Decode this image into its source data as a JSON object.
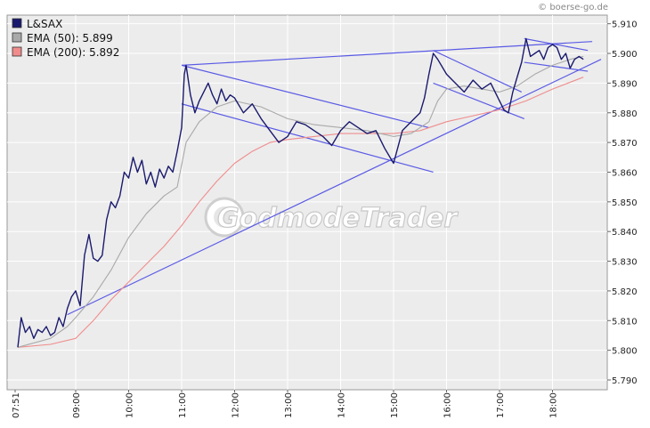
{
  "credit": "© boerse-go.de",
  "watermark": "GodmodeTrader",
  "colors": {
    "price": "#1a1a6e",
    "ema50": "#a9a9a9",
    "ema200": "#f08c8c",
    "trendlines": "#5a5ae6",
    "plot_bg": "#ececec",
    "grid": "#ffffff"
  },
  "chart_data": {
    "type": "line",
    "grid": true,
    "legend_position": "top-left",
    "ylim": [
      5.79,
      5.912
    ],
    "x_tick_labels": [
      "07:51",
      "09:00",
      "10:00",
      "11:00",
      "12:00",
      "13:00",
      "14:00",
      "15:00",
      "16:00",
      "17:00",
      "18:00"
    ],
    "y_tick_labels": [
      "5.790",
      "5.800",
      "5.810",
      "5.820",
      "5.830",
      "5.840",
      "5.850",
      "5.860",
      "5.870",
      "5.880",
      "5.890",
      "5.900",
      "5.910"
    ],
    "y_ticks": [
      5.79,
      5.8,
      5.81,
      5.82,
      5.83,
      5.84,
      5.85,
      5.86,
      5.87,
      5.88,
      5.89,
      5.9,
      5.91
    ],
    "x_ticks": [
      "07:51",
      "09:00",
      "10:00",
      "11:00",
      "12:00",
      "13:00",
      "14:00",
      "15:00",
      "16:00",
      "17:00",
      "18:00"
    ],
    "xlim": [
      "07:51",
      "18:40"
    ],
    "series": [
      {
        "name": "L&SAX",
        "legend_label": "L&SAX",
        "color": "#1a1a6e",
        "x": [
          "07:51",
          "07:55",
          "08:00",
          "08:05",
          "08:10",
          "08:15",
          "08:20",
          "08:25",
          "08:30",
          "08:35",
          "08:40",
          "08:45",
          "08:50",
          "08:55",
          "09:00",
          "09:05",
          "09:10",
          "09:15",
          "09:20",
          "09:25",
          "09:30",
          "09:35",
          "09:40",
          "09:45",
          "09:50",
          "09:55",
          "10:00",
          "10:05",
          "10:10",
          "10:15",
          "10:20",
          "10:25",
          "10:30",
          "10:35",
          "10:40",
          "10:45",
          "10:50",
          "10:55",
          "11:00",
          "11:03",
          "11:05",
          "11:10",
          "11:15",
          "11:20",
          "11:25",
          "11:30",
          "11:35",
          "11:40",
          "11:45",
          "11:50",
          "11:55",
          "12:00",
          "12:10",
          "12:20",
          "12:30",
          "12:40",
          "12:50",
          "13:00",
          "13:10",
          "13:20",
          "13:30",
          "13:40",
          "13:50",
          "14:00",
          "14:10",
          "14:20",
          "14:30",
          "14:40",
          "14:50",
          "15:00",
          "15:10",
          "15:20",
          "15:30",
          "15:35",
          "15:40",
          "15:45",
          "15:50",
          "16:00",
          "16:10",
          "16:20",
          "16:30",
          "16:40",
          "16:50",
          "17:00",
          "17:05",
          "17:10",
          "17:15",
          "17:20",
          "17:25",
          "17:30",
          "17:35",
          "17:40",
          "17:45",
          "17:50",
          "17:55",
          "18:00",
          "18:05",
          "18:10",
          "18:15",
          "18:20",
          "18:25",
          "18:30",
          "18:35"
        ],
        "y": [
          5.801,
          5.811,
          5.806,
          5.808,
          5.804,
          5.807,
          5.806,
          5.808,
          5.805,
          5.806,
          5.811,
          5.808,
          5.814,
          5.818,
          5.82,
          5.815,
          5.832,
          5.839,
          5.831,
          5.83,
          5.832,
          5.844,
          5.85,
          5.848,
          5.852,
          5.86,
          5.858,
          5.865,
          5.86,
          5.864,
          5.856,
          5.86,
          5.855,
          5.861,
          5.858,
          5.862,
          5.86,
          5.867,
          5.875,
          5.893,
          5.896,
          5.886,
          5.88,
          5.884,
          5.887,
          5.89,
          5.886,
          5.883,
          5.888,
          5.884,
          5.886,
          5.885,
          5.88,
          5.883,
          5.878,
          5.874,
          5.87,
          5.872,
          5.877,
          5.876,
          5.874,
          5.872,
          5.869,
          5.874,
          5.877,
          5.875,
          5.873,
          5.874,
          5.868,
          5.863,
          5.874,
          5.877,
          5.88,
          5.885,
          5.893,
          5.9,
          5.898,
          5.893,
          5.89,
          5.887,
          5.891,
          5.888,
          5.89,
          5.884,
          5.881,
          5.88,
          5.887,
          5.892,
          5.897,
          5.905,
          5.899,
          5.9,
          5.901,
          5.898,
          5.902,
          5.903,
          5.902,
          5.898,
          5.9,
          5.895,
          5.898,
          5.899,
          5.898
        ]
      },
      {
        "name": "EMA (50)",
        "legend_label": "EMA (50): 5.899",
        "color": "#a9a9a9",
        "x": [
          "07:51",
          "08:30",
          "08:50",
          "09:00",
          "09:20",
          "09:40",
          "10:00",
          "10:20",
          "10:40",
          "10:55",
          "11:05",
          "11:20",
          "11:40",
          "12:00",
          "12:30",
          "13:00",
          "13:30",
          "14:00",
          "14:30",
          "15:00",
          "15:20",
          "15:40",
          "15:50",
          "16:00",
          "16:20",
          "16:40",
          "17:00",
          "17:20",
          "17:40",
          "18:00",
          "18:20",
          "18:35"
        ],
        "y": [
          5.801,
          5.804,
          5.808,
          5.811,
          5.818,
          5.827,
          5.838,
          5.846,
          5.852,
          5.855,
          5.87,
          5.877,
          5.882,
          5.884,
          5.882,
          5.878,
          5.876,
          5.875,
          5.874,
          5.872,
          5.873,
          5.877,
          5.884,
          5.888,
          5.889,
          5.888,
          5.887,
          5.889,
          5.893,
          5.896,
          5.898,
          5.899
        ]
      },
      {
        "name": "EMA (200)",
        "legend_label": "EMA (200): 5.892",
        "color": "#f08c8c",
        "x": [
          "07:51",
          "08:30",
          "09:00",
          "09:20",
          "09:40",
          "10:00",
          "10:20",
          "10:40",
          "11:00",
          "11:20",
          "11:40",
          "12:00",
          "12:20",
          "12:40",
          "13:00",
          "13:30",
          "14:00",
          "14:30",
          "15:00",
          "15:30",
          "16:00",
          "16:30",
          "17:00",
          "17:30",
          "18:00",
          "18:35"
        ],
        "y": [
          5.801,
          5.802,
          5.804,
          5.81,
          5.817,
          5.823,
          5.829,
          5.835,
          5.842,
          5.85,
          5.857,
          5.863,
          5.867,
          5.87,
          5.871,
          5.872,
          5.873,
          5.873,
          5.873,
          5.874,
          5.877,
          5.879,
          5.881,
          5.884,
          5.888,
          5.892
        ]
      }
    ],
    "trendlines": [
      {
        "name": "upper-resistance",
        "x": [
          "11:00",
          "18:45"
        ],
        "y": [
          5.896,
          5.904
        ]
      },
      {
        "name": "long-support",
        "x": [
          "08:50",
          "18:55"
        ],
        "y": [
          5.812,
          5.898
        ]
      },
      {
        "name": "channel1-top",
        "x": [
          "11:00",
          "15:40"
        ],
        "y": [
          5.896,
          5.875
        ]
      },
      {
        "name": "channel1-bottom",
        "x": [
          "11:00",
          "15:45"
        ],
        "y": [
          5.883,
          5.86
        ]
      },
      {
        "name": "channel2-top",
        "x": [
          "15:45",
          "17:25"
        ],
        "y": [
          5.901,
          5.887
        ]
      },
      {
        "name": "channel2-bottom",
        "x": [
          "15:45",
          "17:28"
        ],
        "y": [
          5.89,
          5.878
        ]
      },
      {
        "name": "flag-top",
        "x": [
          "17:28",
          "18:40"
        ],
        "y": [
          5.905,
          5.901
        ]
      },
      {
        "name": "flag-bottom",
        "x": [
          "17:28",
          "18:40"
        ],
        "y": [
          5.897,
          5.894
        ]
      }
    ]
  }
}
